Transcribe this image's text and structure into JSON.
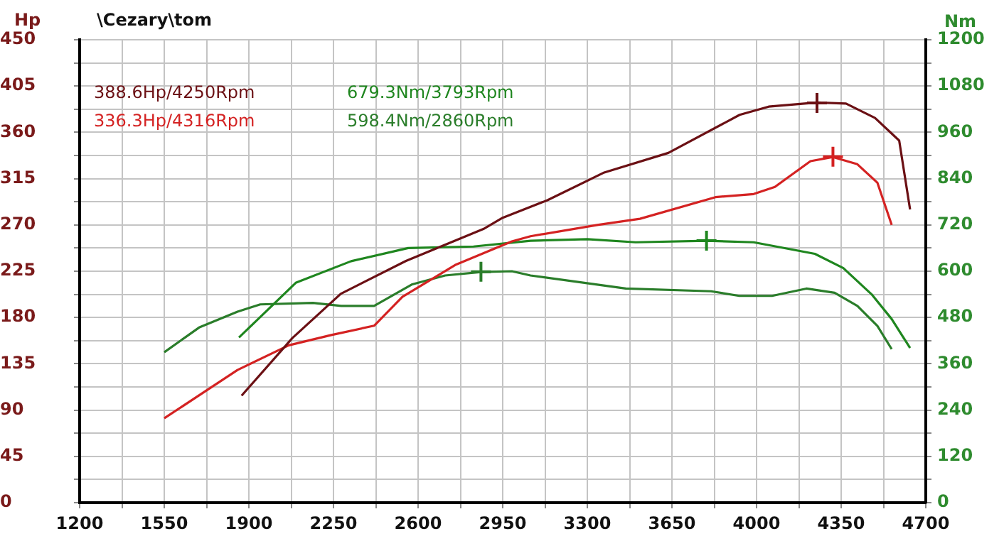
{
  "chart_data": {
    "type": "line",
    "title": "\\Cezary\\tom",
    "ylabel": "Hp",
    "y2label": "Nm",
    "annotations": [
      "388.6Hp/4250Rpm",
      "336.3Hp/4316Rpm",
      "679.3Nm/3793Rpm",
      "598.4Nm/2860Rpm"
    ],
    "series": [
      {
        "color": "#6b1014",
        "x": [
          1870,
          2080,
          2280,
          2550,
          2870,
          2950,
          3135,
          3370,
          3635,
          3930,
          4050,
          4250,
          4370,
          4490,
          4590,
          4635
        ],
        "values": [
          104,
          160,
          203,
          235,
          266,
          277,
          294,
          321,
          340,
          377,
          385,
          389,
          388,
          374,
          352,
          285
        ]
      },
      {
        "color": "#d42222",
        "x": [
          1550,
          1853,
          2065,
          2241,
          2418,
          2535,
          2753,
          2988,
          3065,
          3341,
          3518,
          3830,
          3988,
          4076,
          4223,
          4316,
          4417,
          4500,
          4559
        ],
        "values": [
          82,
          129,
          153,
          163,
          172,
          200,
          231,
          254,
          259,
          270,
          276,
          297,
          300,
          307,
          332,
          336,
          329,
          311,
          270
        ]
      },
      {
        "color": "#1f861f",
        "axis": "y2",
        "x": [
          1859,
          2094,
          2323,
          2559,
          2829,
          3065,
          3300,
          3500,
          3793,
          3988,
          4241,
          4359,
          4476,
          4559,
          4635
        ],
        "values": [
          428,
          570,
          626,
          660,
          664,
          679,
          683,
          675,
          679,
          675,
          645,
          608,
          540,
          476,
          401
        ]
      },
      {
        "color": "#2a7d2a",
        "axis": "y2",
        "x": [
          1550,
          1694,
          1853,
          1947,
          2165,
          2282,
          2418,
          2576,
          2712,
          2860,
          2988,
          3065,
          3459,
          3812,
          3929,
          4064,
          4206,
          4323,
          4417,
          4500,
          4559
        ],
        "values": [
          390,
          454,
          495,
          514,
          518,
          510,
          510,
          566,
          589,
          598,
          600,
          589,
          555,
          548,
          536,
          536,
          555,
          544,
          510,
          458,
          398
        ]
      },
      {
        "type": "scatter",
        "marker": "cross",
        "color": "#6b1014",
        "x": [
          4250
        ],
        "values": [
          388.6
        ]
      },
      {
        "type": "scatter",
        "marker": "cross",
        "color": "#d42222",
        "x": [
          4316
        ],
        "values": [
          336.3
        ]
      },
      {
        "type": "scatter",
        "marker": "cross",
        "color": "#1f861f",
        "axis": "y2",
        "x": [
          3793
        ],
        "values": [
          679.3
        ]
      },
      {
        "type": "scatter",
        "marker": "cross",
        "color": "#2a7d2a",
        "axis": "y2",
        "x": [
          2860
        ],
        "values": [
          598.4
        ]
      }
    ],
    "marker": "none",
    "grid": true,
    "legend": false,
    "xlim": [
      1200,
      4700
    ],
    "xticks": [
      1200,
      {
        "value": 1375,
        "label": null
      },
      1550,
      {
        "value": 1725,
        "label": null
      },
      1900,
      {
        "value": 2075,
        "label": null
      },
      2250,
      {
        "value": 2425,
        "label": null
      },
      2600,
      {
        "value": 2775,
        "label": null
      },
      2950,
      {
        "value": 3125,
        "label": null
      },
      3300,
      {
        "value": 3475,
        "label": null
      },
      3650,
      {
        "value": 3825,
        "label": null
      },
      4000,
      {
        "value": 4175,
        "label": null
      },
      4350,
      {
        "value": 4525,
        "label": null
      },
      4700
    ],
    "ylim": [
      0,
      450
    ],
    "yticks": [
      0,
      {
        "value": 22.5,
        "label": null
      },
      45,
      {
        "value": 67.5,
        "label": null
      },
      90,
      {
        "value": 112.5,
        "label": null
      },
      135,
      {
        "value": 157.5,
        "label": null
      },
      180,
      {
        "value": 202.5,
        "label": null
      },
      225,
      {
        "value": 247.5,
        "label": null
      },
      270,
      {
        "value": 292.5,
        "label": null
      },
      315,
      {
        "value": 337.5,
        "label": null
      },
      360,
      {
        "value": 382.5,
        "label": null
      },
      405,
      {
        "value": 427.5,
        "label": null
      },
      450
    ],
    "y2lim": [
      0,
      1200
    ],
    "y2ticks": [
      0,
      {
        "value": 60,
        "label": null
      },
      120,
      {
        "value": 180,
        "label": null
      },
      240,
      {
        "value": 300,
        "label": null
      },
      360,
      {
        "value": 420,
        "label": null
      },
      480,
      {
        "value": 540,
        "label": null
      },
      600,
      {
        "value": 660,
        "label": null
      },
      720,
      {
        "value": 780,
        "label": null
      },
      840,
      {
        "value": 900,
        "label": null
      },
      960,
      {
        "value": 1020,
        "label": null
      },
      1080,
      {
        "value": 1140,
        "label": null
      },
      1200
    ]
  }
}
